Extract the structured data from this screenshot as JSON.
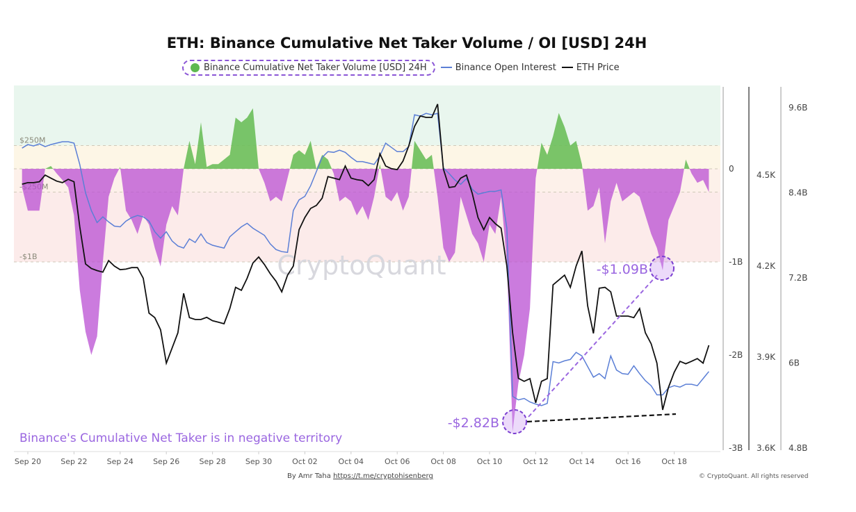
{
  "chart_data": {
    "type": "area+line",
    "title": "ETH: Binance Cumulative Net Taker Volume / OI [USD] 24H",
    "legend": {
      "placement": "top",
      "items": [
        {
          "name": "Binance Cumulative Net Taker Volume [USD] 24H",
          "color": "#5db94f"
        },
        {
          "name": "Binance Open Interest",
          "color": "#5b7fd6"
        },
        {
          "name": "ETH Price",
          "color": "#111111"
        }
      ]
    },
    "x_ticks": [
      "Sep 20",
      "Sep 22",
      "Sep 24",
      "Sep 26",
      "Sep 28",
      "Sep 30",
      "Oct 02",
      "Oct 04",
      "Oct 06",
      "Oct 08",
      "Oct 10",
      "Oct 12",
      "Oct 14",
      "Oct 16",
      "Oct 18"
    ],
    "x_start": "Sep 19 18:00",
    "x_step_hours": 6,
    "axes": {
      "net_taker": {
        "ticks": [
          "0",
          "-1B",
          "-2B",
          "-3B"
        ],
        "range_usd_billions": [
          -3,
          0.95
        ]
      },
      "eth_price": {
        "ticks": [
          "4.5K",
          "4.2K",
          "3.9K",
          "3.6K"
        ],
        "range_usd": [
          3600,
          4700
        ]
      },
      "open_interest": {
        "ticks": [
          "9.6B",
          "8.4B",
          "7.2B",
          "6B",
          "4.8B"
        ],
        "range_usd_billions": [
          4.8,
          9.8
        ]
      }
    },
    "bands": [
      {
        "label": "$250M",
        "value": 0.25,
        "color_above": "#e9f6ee"
      },
      {
        "label": "",
        "value": 0,
        "color_above": "#fdf6e6"
      },
      {
        "label": "-$250M",
        "value": -0.25,
        "color_above": "#fdf1ea"
      },
      {
        "label": "-$1B",
        "value": -1,
        "color_above": "#fcebea"
      }
    ],
    "series": [
      {
        "name": "Binance Cumulative Net Taker Volume [USD] 24H",
        "unit": "USD billions",
        "positive_color": "#6cbf5a",
        "negative_color": "#b94fd3",
        "values": [
          -0.2,
          -0.45,
          -0.45,
          -0.45,
          0.0,
          0.03,
          -0.05,
          -0.12,
          -0.2,
          -0.5,
          -1.3,
          -1.75,
          -2.0,
          -1.8,
          -1.0,
          -0.3,
          -0.1,
          0.02,
          -0.45,
          -0.55,
          -0.7,
          -0.5,
          -0.6,
          -0.85,
          -1.05,
          -0.6,
          -0.4,
          -0.5,
          0.0,
          0.3,
          0.05,
          0.5,
          0.02,
          0.05,
          0.05,
          0.1,
          0.15,
          0.55,
          0.5,
          0.55,
          0.65,
          0.0,
          -0.15,
          -0.35,
          -0.3,
          -0.35,
          -0.1,
          0.15,
          0.2,
          0.15,
          0.3,
          0.0,
          0.15,
          0.1,
          -0.05,
          -0.35,
          -0.3,
          -0.35,
          -0.5,
          -0.4,
          -0.55,
          -0.3,
          0.05,
          -0.3,
          -0.35,
          -0.25,
          -0.45,
          -0.3,
          0.3,
          0.2,
          0.1,
          0.15,
          -0.3,
          -0.85,
          -1.0,
          -0.9,
          -0.3,
          -0.5,
          -0.7,
          -0.8,
          -1.0,
          -0.6,
          -0.7,
          -0.3,
          -1.0,
          -2.82,
          -2.3,
          -2.0,
          -1.5,
          -0.1,
          0.28,
          0.15,
          0.35,
          0.6,
          0.45,
          0.25,
          0.3,
          0.05,
          -0.45,
          -0.4,
          -0.2,
          -0.8,
          -0.35,
          -0.15,
          -0.35,
          -0.3,
          -0.25,
          -0.3,
          -0.5,
          -0.7,
          -0.85,
          -1.09,
          -0.55,
          -0.4,
          -0.25,
          0.1,
          -0.05,
          -0.15,
          -0.12,
          -0.25
        ]
      },
      {
        "name": "Binance Open Interest",
        "unit": "USD billions",
        "color": "#5b7fd6",
        "values": [
          9.03,
          9.08,
          9.06,
          9.09,
          9.05,
          9.08,
          9.1,
          9.12,
          9.12,
          9.1,
          8.8,
          8.4,
          8.15,
          7.98,
          8.06,
          7.99,
          7.93,
          7.92,
          8.0,
          8.05,
          8.08,
          8.06,
          8.0,
          7.85,
          7.76,
          7.85,
          7.72,
          7.65,
          7.62,
          7.75,
          7.7,
          7.82,
          7.7,
          7.66,
          7.64,
          7.62,
          7.78,
          7.85,
          7.92,
          7.97,
          7.9,
          7.85,
          7.8,
          7.68,
          7.6,
          7.57,
          7.56,
          8.15,
          8.3,
          8.35,
          8.5,
          8.7,
          8.9,
          8.98,
          8.97,
          9.0,
          8.97,
          8.9,
          8.84,
          8.84,
          8.82,
          8.8,
          8.92,
          9.1,
          9.04,
          8.98,
          8.98,
          9.05,
          9.5,
          9.48,
          9.52,
          9.5,
          9.52,
          8.75,
          8.67,
          8.58,
          8.52,
          8.6,
          8.45,
          8.38,
          8.4,
          8.42,
          8.42,
          8.44,
          7.9,
          5.53,
          5.48,
          5.5,
          5.45,
          5.42,
          5.4,
          5.43,
          6.02,
          6.0,
          6.03,
          6.05,
          6.15,
          6.1,
          5.95,
          5.8,
          5.85,
          5.78,
          6.1,
          5.9,
          5.85,
          5.84,
          5.96,
          5.85,
          5.75,
          5.68,
          5.55,
          5.55,
          5.65,
          5.68,
          5.66,
          5.7,
          5.7,
          5.68,
          5.78,
          5.88
        ]
      },
      {
        "name": "ETH Price",
        "unit": "USD",
        "color": "#111111",
        "values": [
          4470,
          4475,
          4475,
          4478,
          4500,
          4490,
          4480,
          4475,
          4486,
          4478,
          4330,
          4207,
          4192,
          4185,
          4180,
          4218,
          4200,
          4188,
          4190,
          4195,
          4195,
          4160,
          4045,
          4030,
          3990,
          3880,
          3930,
          3980,
          4110,
          4030,
          4024,
          4024,
          4031,
          4020,
          4015,
          4010,
          4060,
          4130,
          4120,
          4160,
          4210,
          4230,
          4205,
          4175,
          4150,
          4115,
          4170,
          4200,
          4320,
          4360,
          4390,
          4400,
          4424,
          4495,
          4490,
          4485,
          4530,
          4490,
          4485,
          4482,
          4465,
          4485,
          4570,
          4530,
          4521,
          4518,
          4546,
          4596,
          4660,
          4695,
          4690,
          4690,
          4734,
          4520,
          4459,
          4462,
          4490,
          4500,
          4440,
          4360,
          4320,
          4360,
          4340,
          4325,
          4200,
          3980,
          3830,
          3820,
          3829,
          3749,
          3820,
          3829,
          4138,
          4154,
          4170,
          4130,
          4200,
          4250,
          4069,
          3978,
          4127,
          4130,
          4115,
          4035,
          4035,
          4035,
          4030,
          4060,
          3980,
          3944,
          3880,
          3726,
          3800,
          3850,
          3886,
          3878,
          3886,
          3895,
          3880,
          3939
        ]
      }
    ],
    "annotations": {
      "low_label": "-$2.82B",
      "recent_low_label": "-$1.09B",
      "caption": "Binance's Cumulative Net Taker is in negative territory",
      "accent_color": "#8a55d6"
    },
    "watermark": "CryptoQuant"
  },
  "footer": {
    "by": "By Amr Taha",
    "link": "https://t.me/cryptohisenberg",
    "copyright": "© CryptoQuant. All rights reserved"
  }
}
